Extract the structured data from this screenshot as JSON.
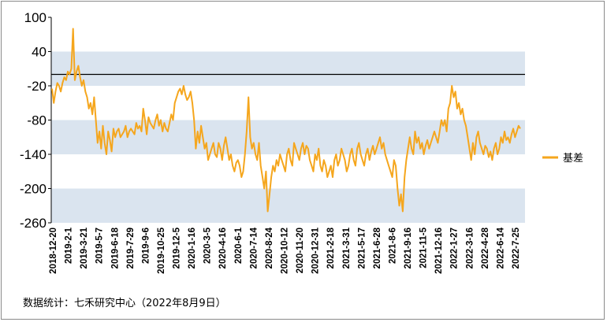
{
  "chart_data": {
    "type": "line",
    "title": "",
    "xlabel": "",
    "ylabel": "",
    "ylim": [
      -260,
      100
    ],
    "y_ticks": [
      100,
      40,
      -20,
      -80,
      -140,
      -200,
      -260
    ],
    "x_tick_labels": [
      "2018-12-20",
      "2019-2-1",
      "2019-3-21",
      "2019-5-7",
      "2019-6-18",
      "2019-7-29",
      "2019-9-6",
      "2019-10-25",
      "2019-12-5",
      "2020-1-16",
      "2020-3-5",
      "2020-4-16",
      "2020-6-1",
      "2020-7-14",
      "2020-8-24",
      "2020-10-12",
      "2020-11-20",
      "2020-12-31",
      "2021-2-18",
      "2021-3-31",
      "2021-5-17",
      "2021-6-28",
      "2021-8-6",
      "2021-9-16",
      "2021-11-5",
      "2021-12-16",
      "2022-1-27",
      "2022-3-16",
      "2022-4-28",
      "2022-6-14",
      "2022-7-25"
    ],
    "zero_line": 0,
    "grid_bands": [
      [
        40,
        -20
      ],
      [
        -80,
        -140
      ],
      [
        -200,
        -260
      ]
    ],
    "legend_position": "right",
    "series": [
      {
        "name": "基差",
        "color": "#F5A61D",
        "values": [
          -25,
          -50,
          -30,
          -15,
          -20,
          -30,
          -15,
          -5,
          -10,
          5,
          0,
          10,
          80,
          -10,
          5,
          15,
          -5,
          -20,
          -10,
          -30,
          -40,
          -60,
          -50,
          -70,
          -40,
          -80,
          -120,
          -100,
          -130,
          -90,
          -120,
          -140,
          -100,
          -115,
          -135,
          -95,
          -110,
          -100,
          -95,
          -110,
          -105,
          -100,
          -90,
          -110,
          -100,
          -95,
          -100,
          -105,
          -85,
          -95,
          -90,
          -100,
          -60,
          -80,
          -105,
          -75,
          -85,
          -90,
          -95,
          -80,
          -70,
          -90,
          -80,
          -100,
          -85,
          -95,
          -100,
          -85,
          -70,
          -80,
          -50,
          -40,
          -30,
          -25,
          -35,
          -20,
          -35,
          -45,
          -40,
          -30,
          -50,
          -80,
          -130,
          -100,
          -120,
          -90,
          -110,
          -130,
          -120,
          -150,
          -140,
          -130,
          -120,
          -140,
          -145,
          -120,
          -130,
          -150,
          -125,
          -110,
          -130,
          -150,
          -140,
          -160,
          -170,
          -155,
          -150,
          -160,
          -180,
          -170,
          -140,
          -100,
          -40,
          -110,
          -130,
          -120,
          -140,
          -150,
          -120,
          -160,
          -180,
          -200,
          -170,
          -240,
          -210,
          -180,
          -160,
          -170,
          -150,
          -160,
          -140,
          -150,
          -160,
          -170,
          -140,
          -130,
          -150,
          -160,
          -120,
          -130,
          -140,
          -150,
          -130,
          -120,
          -140,
          -125,
          -130,
          -150,
          -160,
          -170,
          -140,
          -150,
          -130,
          -160,
          -170,
          -150,
          -160,
          -180,
          -170,
          -160,
          -180,
          -150,
          -140,
          -160,
          -150,
          -130,
          -140,
          -150,
          -170,
          -160,
          -140,
          -130,
          -150,
          -160,
          -130,
          -120,
          -140,
          -150,
          -160,
          -140,
          -130,
          -150,
          -135,
          -125,
          -140,
          -130,
          -120,
          -110,
          -130,
          -120,
          -140,
          -150,
          -160,
          -170,
          -180,
          -150,
          -160,
          -200,
          -230,
          -210,
          -240,
          -180,
          -150,
          -130,
          -110,
          -130,
          -140,
          -100,
          -120,
          -110,
          -130,
          -120,
          -140,
          -125,
          -115,
          -130,
          -120,
          -110,
          -100,
          -110,
          -120,
          -100,
          -80,
          -90,
          -80,
          -100,
          -60,
          -50,
          -20,
          -40,
          -30,
          -60,
          -50,
          -70,
          -60,
          -80,
          -90,
          -110,
          -130,
          -150,
          -120,
          -140,
          -110,
          -100,
          -120,
          -130,
          -140,
          -125,
          -130,
          -145,
          -135,
          -150,
          -130,
          -120,
          -140,
          -130,
          -110,
          -120,
          -100,
          -115,
          -110,
          -120,
          -105,
          -95,
          -110,
          -100,
          -90,
          -95
        ]
      }
    ]
  },
  "legend": {
    "label": "基差"
  },
  "source_note": "数据统计：七禾研究中心（2022年8月9日）"
}
